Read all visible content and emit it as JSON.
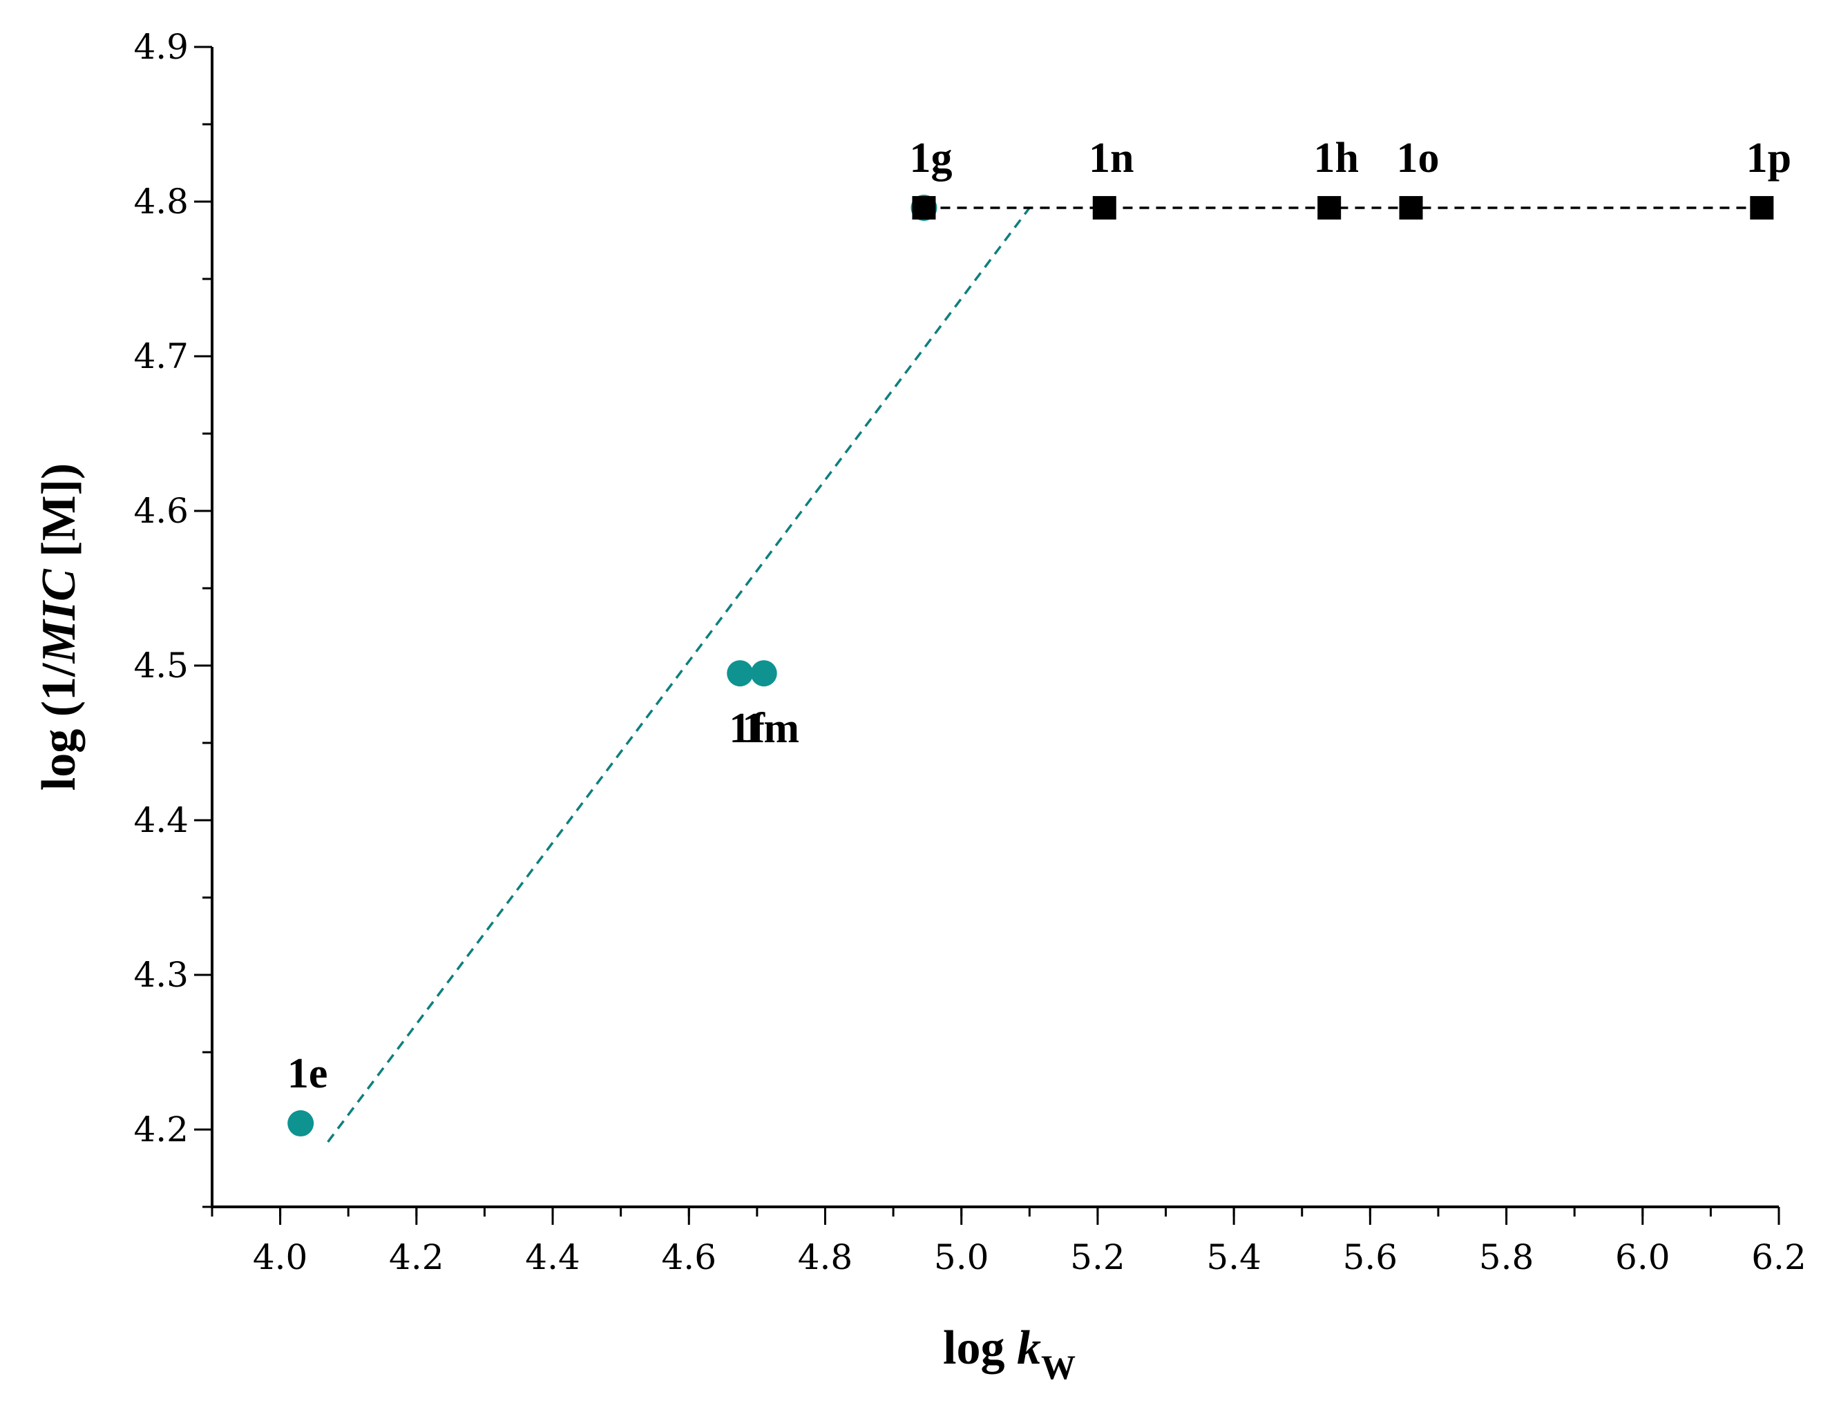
{
  "chart_data": {
    "type": "scatter",
    "title": "",
    "xlabel": {
      "prefix": "log ",
      "var": "k",
      "sub": "W"
    },
    "ylabel": {
      "prefix": "log (1/",
      "var": "MIC",
      "suffix": " [M])"
    },
    "xlim": [
      3.9,
      6.2
    ],
    "ylim": [
      4.15,
      4.9
    ],
    "grid": false,
    "x_ticks": [
      "4.0",
      "4.2",
      "4.4",
      "4.6",
      "4.8",
      "5.0",
      "5.2",
      "5.4",
      "5.6",
      "5.8",
      "6.0",
      "6.2"
    ],
    "y_ticks": [
      "4.2",
      "4.3",
      "4.4",
      "4.5",
      "4.6",
      "4.7",
      "4.8",
      "4.9"
    ],
    "x_minor_step": 0.1,
    "y_minor_step": 0.05,
    "series": [
      {
        "name": "circles",
        "marker": "circle",
        "color": "#0e9391",
        "points": [
          {
            "label": "1e",
            "x": 4.03,
            "y": 4.204
          },
          {
            "label": "1f",
            "x": 4.675,
            "y": 4.495
          },
          {
            "label": "1m",
            "x": 4.71,
            "y": 4.495
          },
          {
            "label": "1g",
            "x": 4.945,
            "y": 4.796
          }
        ]
      },
      {
        "name": "squares",
        "marker": "square",
        "color": "#000000",
        "points": [
          {
            "label": "1g",
            "x": 4.945,
            "y": 4.796
          },
          {
            "label": "1n",
            "x": 5.21,
            "y": 4.796
          },
          {
            "label": "1h",
            "x": 5.54,
            "y": 4.796
          },
          {
            "label": "1o",
            "x": 5.66,
            "y": 4.796
          },
          {
            "label": "1p",
            "x": 6.175,
            "y": 4.796
          }
        ]
      }
    ],
    "fit_lines": [
      {
        "name": "rising-fit",
        "color": "#0e7f7e",
        "style": "dashed",
        "x": [
          4.07,
          5.1
        ],
        "y": [
          4.192,
          4.796
        ]
      },
      {
        "name": "plateau-fit",
        "color": "#000000",
        "style": "dashed",
        "x": [
          4.945,
          6.175
        ],
        "y": [
          4.796,
          4.796
        ]
      }
    ],
    "labels": [
      {
        "text": "1e",
        "x": 4.03,
        "y": 4.204,
        "position": "above"
      },
      {
        "text": "1f",
        "x": 4.675,
        "y": 4.495,
        "position": "below"
      },
      {
        "text": "1m",
        "x": 4.71,
        "y": 4.495,
        "position": "below"
      },
      {
        "text": "1g",
        "x": 4.945,
        "y": 4.796,
        "position": "above"
      },
      {
        "text": "1n",
        "x": 5.21,
        "y": 4.796,
        "position": "above"
      },
      {
        "text": "1h",
        "x": 5.54,
        "y": 4.796,
        "position": "above"
      },
      {
        "text": "1o",
        "x": 5.66,
        "y": 4.796,
        "position": "above"
      },
      {
        "text": "1p",
        "x": 6.175,
        "y": 4.796,
        "position": "above"
      }
    ]
  }
}
